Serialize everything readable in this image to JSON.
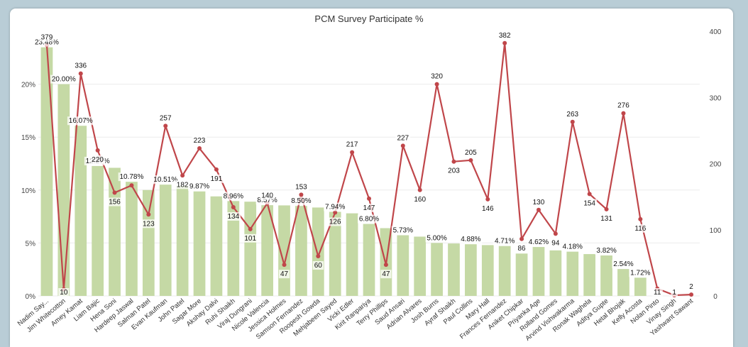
{
  "chart_data": {
    "type": "bar",
    "title": "PCM Survey Participate %",
    "categories": [
      "Nadim Say...",
      "Jim Whitecotton",
      "Amey Kamat",
      "Liam Bajic",
      "Hena Soni",
      "Hardeep Jaswal",
      "Salman Patel",
      "Evan Kaufman",
      "John Patel",
      "Sagar More",
      "Akshay Dalvi",
      "Ruhi Shaikh",
      "Viraj Dungrani",
      "Nicole Valencia",
      "Jessica Holmes",
      "Samson Fernandez",
      "Roopesh Gowda",
      "Mehjabeen Sayed",
      "Vicki Edler",
      "Kirit Ranpariya",
      "Terry Phillips",
      "Saud Ansari",
      "Adrian Alvares",
      "Josh Burns",
      "Ayraf Shaikh",
      "Paul Collins",
      "Mary Hall",
      "Frances Fernandez",
      "Aniket Chipkar",
      "Priyanka Age",
      "Rolland Gomes",
      "Arvind Vishwakarma",
      "Ronak Waghela",
      "Aditya Gupte",
      "Hetal Bhojak",
      "Kelly Acosta",
      "Nolan Pinto",
      "Vinay Singh",
      "Yashwant Sawant"
    ],
    "series": [
      {
        "kind": "bar",
        "axis": "left",
        "color": "#c5d9a5",
        "values": [
          23.48,
          20.0,
          16.07,
          12.27,
          12.1,
          10.78,
          10.0,
          10.51,
          10.4,
          9.87,
          9.4,
          8.96,
          8.9,
          8.57,
          8.55,
          8.5,
          8.35,
          7.94,
          7.8,
          6.8,
          6.4,
          5.73,
          5.6,
          5.0,
          4.95,
          4.88,
          4.8,
          4.71,
          4.0,
          4.62,
          4.3,
          4.18,
          3.95,
          3.82,
          2.54,
          1.72,
          0,
          0,
          0
        ],
        "labels": [
          "23.48%",
          "20.00%",
          "16.07%",
          "12.27%",
          "",
          "10.78%",
          "",
          "10.51%",
          "",
          "9.87%",
          "",
          "8.96%",
          "",
          "8.57%",
          "",
          "8.50%",
          "",
          "7.94%",
          "",
          "6.80%",
          "",
          "5.73%",
          "",
          "5.00%",
          "",
          "4.88%",
          "",
          "4.71%",
          "",
          "4.62%",
          "",
          "4.18%",
          "",
          "3.82%",
          "2.54%",
          "1.72%",
          "",
          "",
          ""
        ]
      },
      {
        "kind": "line",
        "axis": "right",
        "color": "#c0464a",
        "values": [
          379,
          10,
          336,
          220,
          156,
          167,
          123,
          257,
          182,
          223,
          191,
          134,
          101,
          140,
          47,
          153,
          60,
          126,
          217,
          147,
          47,
          227,
          160,
          320,
          203,
          205,
          146,
          382,
          86,
          130,
          94,
          263,
          154,
          131,
          276,
          116,
          11,
          1,
          2
        ],
        "labels": [
          "379",
          "10",
          "336",
          "220",
          "156",
          "",
          "123",
          "257",
          "182",
          "223",
          "191",
          "134",
          "101",
          "140",
          "47",
          "153",
          "60",
          "126",
          "217",
          "147",
          "47",
          "227",
          "160",
          "320",
          "203",
          "205",
          "146",
          "382",
          "86",
          "130",
          "94",
          "263",
          "154",
          "131",
          "276",
          "116",
          "11",
          "1",
          "2"
        ]
      }
    ],
    "left_axis": {
      "min": 0,
      "max": 25,
      "ticks": [
        0,
        5,
        10,
        15,
        20
      ],
      "tick_labels": [
        "0%",
        "5%",
        "10%",
        "15%",
        "20%"
      ]
    },
    "right_axis": {
      "min": 0,
      "max": 400,
      "ticks": [
        0,
        100,
        200,
        300,
        400
      ],
      "tick_labels": [
        "0",
        "100",
        "200",
        "300",
        "400"
      ]
    },
    "grid": true,
    "legend": "none"
  }
}
